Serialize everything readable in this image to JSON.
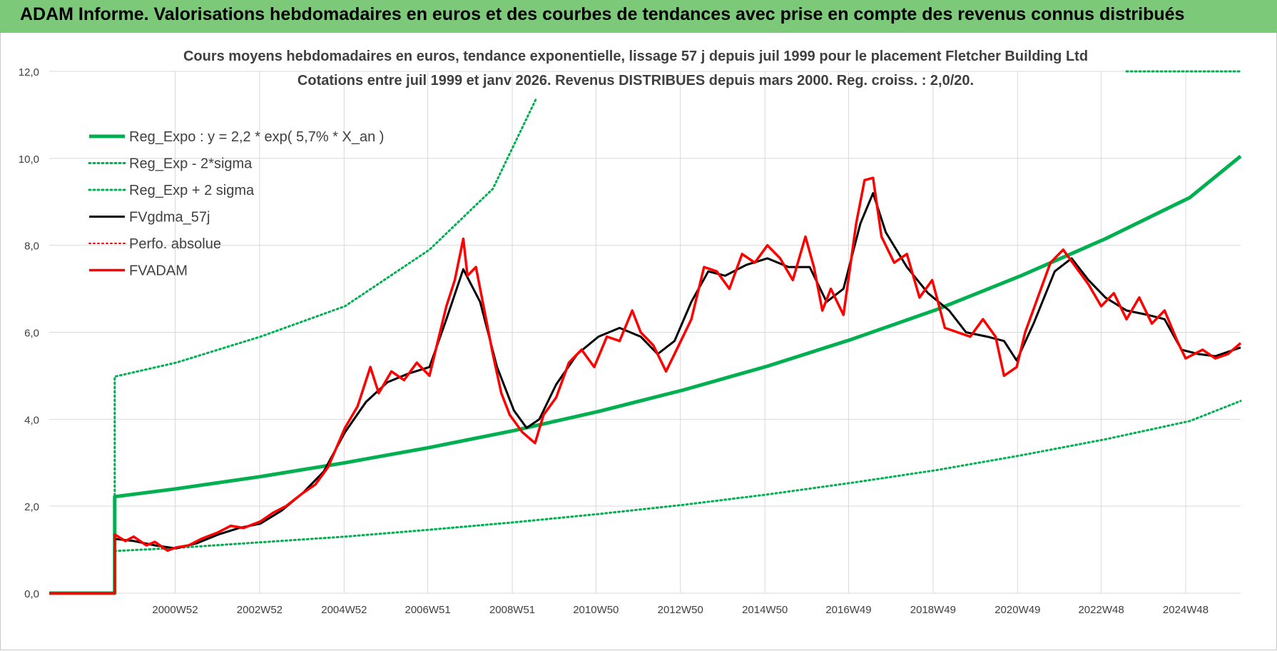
{
  "banner": {
    "title": "ADAM Informe. Valorisations hebdomadaires en euros et des courbes de tendances avec prise en compte des revenus connus distribués"
  },
  "chart_data": {
    "type": "line",
    "title": "Cours moyens hebdomadaires en euros, tendance exponentielle, lissage 57 j depuis juil 1999 pour le placement Fletcher Building Ltd",
    "subtitle": "Cotations entre juil 1999 et janv 2026. Revenus DISTRIBUES depuis mars 2000. Reg. croiss. : 2,0/20.",
    "xlabel": "",
    "ylabel": "",
    "ylim": [
      0,
      12
    ],
    "yticks": [
      "0,0",
      "2,0",
      "4,0",
      "6,0",
      "8,0",
      "10,0",
      "12,0"
    ],
    "xlim": [
      1998.0,
      2026.2
    ],
    "xticks": [
      {
        "x": 2000.98,
        "label": "2000W52"
      },
      {
        "x": 2002.98,
        "label": "2002W52"
      },
      {
        "x": 2004.98,
        "label": "2004W52"
      },
      {
        "x": 2006.96,
        "label": "2006W51"
      },
      {
        "x": 2008.96,
        "label": "2008W51"
      },
      {
        "x": 2010.94,
        "label": "2010W50"
      },
      {
        "x": 2012.94,
        "label": "2012W50"
      },
      {
        "x": 2014.94,
        "label": "2014W50"
      },
      {
        "x": 2016.92,
        "label": "2016W49"
      },
      {
        "x": 2018.92,
        "label": "2018W49"
      },
      {
        "x": 2020.92,
        "label": "2020W49"
      },
      {
        "x": 2022.9,
        "label": "2022W48"
      },
      {
        "x": 2024.9,
        "label": "2024W48"
      }
    ],
    "grid": true,
    "legend_position": "top-left",
    "series": [
      {
        "name": "Reg_Expo : y = 2,2 * exp( 5,7% *  X_an )",
        "color": "#00b050",
        "style": "solid",
        "width": 5,
        "points": [
          [
            1998.0,
            0
          ],
          [
            1999.55,
            0
          ],
          [
            1999.55,
            2.22
          ],
          [
            2001.0,
            2.4
          ],
          [
            2003.0,
            2.68
          ],
          [
            2005.0,
            3.0
          ],
          [
            2007.0,
            3.35
          ],
          [
            2009.0,
            3.74
          ],
          [
            2011.0,
            4.18
          ],
          [
            2013.0,
            4.67
          ],
          [
            2015.0,
            5.22
          ],
          [
            2017.0,
            5.84
          ],
          [
            2019.0,
            6.52
          ],
          [
            2021.0,
            7.3
          ],
          [
            2023.0,
            8.15
          ],
          [
            2025.0,
            9.1
          ],
          [
            2026.2,
            10.05
          ]
        ]
      },
      {
        "name": "Reg_Exp - 2*sigma",
        "color": "#00b050",
        "style": "dotted",
        "width": 3,
        "points": [
          [
            1999.55,
            0.97
          ],
          [
            2001.0,
            1.04
          ],
          [
            2003.0,
            1.17
          ],
          [
            2005.0,
            1.3
          ],
          [
            2007.0,
            1.46
          ],
          [
            2009.0,
            1.63
          ],
          [
            2011.0,
            1.82
          ],
          [
            2013.0,
            2.03
          ],
          [
            2015.0,
            2.27
          ],
          [
            2017.0,
            2.54
          ],
          [
            2019.0,
            2.83
          ],
          [
            2021.0,
            3.17
          ],
          [
            2023.0,
            3.54
          ],
          [
            2025.0,
            3.96
          ],
          [
            2026.2,
            4.42
          ]
        ]
      },
      {
        "name": "Reg_Exp + 2 sigma",
        "color": "#00b050",
        "style": "dotted",
        "width": 3,
        "points": [
          [
            1999.55,
            0.97
          ],
          [
            1999.55,
            4.98
          ],
          [
            2001.0,
            5.3
          ],
          [
            2003.0,
            5.9
          ],
          [
            2005.0,
            6.6
          ],
          [
            2007.0,
            7.9
          ],
          [
            2008.5,
            9.3
          ],
          [
            2009.54,
            11.4
          ]
        ]
      },
      {
        "name": "Reg_Exp + 2 sigma (suite)",
        "color": "#00b050",
        "style": "dotted",
        "width": 3,
        "points": [
          [
            2023.5,
            12.0
          ],
          [
            2026.2,
            12.0
          ]
        ]
      },
      {
        "name": "FVgdma_57j",
        "color": "#000000",
        "style": "solid",
        "width": 3,
        "points": [
          [
            1998.0,
            0
          ],
          [
            1999.55,
            0
          ],
          [
            1999.55,
            1.25
          ],
          [
            2000.0,
            1.2
          ],
          [
            2000.5,
            1.1
          ],
          [
            2001.0,
            1.03
          ],
          [
            2001.5,
            1.15
          ],
          [
            2002.0,
            1.35
          ],
          [
            2002.5,
            1.5
          ],
          [
            2003.0,
            1.6
          ],
          [
            2003.5,
            1.9
          ],
          [
            2004.0,
            2.3
          ],
          [
            2004.5,
            2.8
          ],
          [
            2005.0,
            3.7
          ],
          [
            2005.5,
            4.4
          ],
          [
            2006.0,
            4.85
          ],
          [
            2006.5,
            5.05
          ],
          [
            2007.0,
            5.2
          ],
          [
            2007.4,
            6.3
          ],
          [
            2007.8,
            7.45
          ],
          [
            2008.2,
            6.7
          ],
          [
            2008.6,
            5.2
          ],
          [
            2009.0,
            4.2
          ],
          [
            2009.3,
            3.8
          ],
          [
            2009.6,
            4.0
          ],
          [
            2010.0,
            4.8
          ],
          [
            2010.5,
            5.5
          ],
          [
            2011.0,
            5.9
          ],
          [
            2011.5,
            6.1
          ],
          [
            2012.0,
            5.9
          ],
          [
            2012.4,
            5.5
          ],
          [
            2012.8,
            5.8
          ],
          [
            2013.2,
            6.7
          ],
          [
            2013.6,
            7.4
          ],
          [
            2014.0,
            7.3
          ],
          [
            2014.5,
            7.55
          ],
          [
            2015.0,
            7.7
          ],
          [
            2015.5,
            7.5
          ],
          [
            2016.0,
            7.5
          ],
          [
            2016.4,
            6.7
          ],
          [
            2016.8,
            7.0
          ],
          [
            2017.2,
            8.5
          ],
          [
            2017.5,
            9.2
          ],
          [
            2017.8,
            8.3
          ],
          [
            2018.3,
            7.5
          ],
          [
            2018.8,
            6.9
          ],
          [
            2019.3,
            6.5
          ],
          [
            2019.7,
            6.0
          ],
          [
            2020.2,
            5.9
          ],
          [
            2020.6,
            5.8
          ],
          [
            2020.9,
            5.35
          ],
          [
            2021.3,
            6.2
          ],
          [
            2021.8,
            7.4
          ],
          [
            2022.2,
            7.7
          ],
          [
            2022.6,
            7.2
          ],
          [
            2023.0,
            6.8
          ],
          [
            2023.5,
            6.5
          ],
          [
            2024.0,
            6.4
          ],
          [
            2024.4,
            6.3
          ],
          [
            2024.8,
            5.6
          ],
          [
            2025.2,
            5.5
          ],
          [
            2025.6,
            5.45
          ],
          [
            2026.2,
            5.65
          ]
        ]
      },
      {
        "name": "Perfo. absolue",
        "color": "#ff0000",
        "style": "dotted",
        "width": 2,
        "points": []
      },
      {
        "name": "FVADAM",
        "color": "#ff0000",
        "style": "solid",
        "width": 3.5,
        "points": [
          [
            1998.0,
            0
          ],
          [
            1999.55,
            0
          ],
          [
            1999.55,
            1.35
          ],
          [
            1999.8,
            1.2
          ],
          [
            2000.0,
            1.3
          ],
          [
            2000.3,
            1.1
          ],
          [
            2000.5,
            1.18
          ],
          [
            2000.8,
            0.98
          ],
          [
            2001.0,
            1.05
          ],
          [
            2001.3,
            1.1
          ],
          [
            2001.6,
            1.25
          ],
          [
            2002.0,
            1.4
          ],
          [
            2002.3,
            1.55
          ],
          [
            2002.6,
            1.5
          ],
          [
            2003.0,
            1.65
          ],
          [
            2003.3,
            1.85
          ],
          [
            2003.6,
            2.0
          ],
          [
            2004.0,
            2.3
          ],
          [
            2004.3,
            2.5
          ],
          [
            2004.6,
            2.9
          ],
          [
            2005.0,
            3.8
          ],
          [
            2005.3,
            4.3
          ],
          [
            2005.6,
            5.2
          ],
          [
            2005.8,
            4.6
          ],
          [
            2006.1,
            5.1
          ],
          [
            2006.4,
            4.9
          ],
          [
            2006.7,
            5.3
          ],
          [
            2007.0,
            5.0
          ],
          [
            2007.2,
            5.8
          ],
          [
            2007.4,
            6.6
          ],
          [
            2007.6,
            7.2
          ],
          [
            2007.8,
            8.15
          ],
          [
            2007.9,
            7.3
          ],
          [
            2008.1,
            7.5
          ],
          [
            2008.3,
            6.5
          ],
          [
            2008.5,
            5.5
          ],
          [
            2008.7,
            4.6
          ],
          [
            2008.9,
            4.1
          ],
          [
            2009.2,
            3.7
          ],
          [
            2009.5,
            3.45
          ],
          [
            2009.7,
            4.1
          ],
          [
            2010.0,
            4.5
          ],
          [
            2010.3,
            5.3
          ],
          [
            2010.6,
            5.6
          ],
          [
            2010.9,
            5.2
          ],
          [
            2011.2,
            5.9
          ],
          [
            2011.5,
            5.8
          ],
          [
            2011.8,
            6.5
          ],
          [
            2012.0,
            6.0
          ],
          [
            2012.3,
            5.7
          ],
          [
            2012.6,
            5.1
          ],
          [
            2012.9,
            5.7
          ],
          [
            2013.2,
            6.3
          ],
          [
            2013.5,
            7.5
          ],
          [
            2013.8,
            7.4
          ],
          [
            2014.1,
            7.0
          ],
          [
            2014.4,
            7.8
          ],
          [
            2014.7,
            7.6
          ],
          [
            2015.0,
            8.0
          ],
          [
            2015.3,
            7.7
          ],
          [
            2015.6,
            7.2
          ],
          [
            2015.9,
            8.2
          ],
          [
            2016.1,
            7.5
          ],
          [
            2016.3,
            6.5
          ],
          [
            2016.5,
            7.0
          ],
          [
            2016.8,
            6.4
          ],
          [
            2017.1,
            8.5
          ],
          [
            2017.3,
            9.5
          ],
          [
            2017.5,
            9.55
          ],
          [
            2017.7,
            8.2
          ],
          [
            2018.0,
            7.6
          ],
          [
            2018.3,
            7.8
          ],
          [
            2018.6,
            6.8
          ],
          [
            2018.9,
            7.2
          ],
          [
            2019.2,
            6.1
          ],
          [
            2019.5,
            6.0
          ],
          [
            2019.8,
            5.9
          ],
          [
            2020.1,
            6.3
          ],
          [
            2020.4,
            5.9
          ],
          [
            2020.6,
            5.0
          ],
          [
            2020.9,
            5.2
          ],
          [
            2021.1,
            6.0
          ],
          [
            2021.4,
            6.8
          ],
          [
            2021.7,
            7.6
          ],
          [
            2022.0,
            7.9
          ],
          [
            2022.3,
            7.5
          ],
          [
            2022.6,
            7.1
          ],
          [
            2022.9,
            6.6
          ],
          [
            2023.2,
            6.9
          ],
          [
            2023.5,
            6.3
          ],
          [
            2023.8,
            6.8
          ],
          [
            2024.1,
            6.2
          ],
          [
            2024.4,
            6.5
          ],
          [
            2024.7,
            5.8
          ],
          [
            2024.9,
            5.4
          ],
          [
            2025.3,
            5.6
          ],
          [
            2025.6,
            5.4
          ],
          [
            2025.9,
            5.5
          ],
          [
            2026.2,
            5.75
          ]
        ]
      }
    ],
    "legend": [
      {
        "label": "Reg_Expo : y = 2,2 * exp( 5,7% *  X_an )",
        "color": "#00b050",
        "style": "solid",
        "width": 5
      },
      {
        "label": "Reg_Exp - 2*sigma",
        "color": "#00b050",
        "style": "dotted",
        "width": 3
      },
      {
        "label": "Reg_Exp + 2 sigma",
        "color": "#00b050",
        "style": "dotted",
        "width": 3
      },
      {
        "label": "FVgdma_57j",
        "color": "#000000",
        "style": "solid",
        "width": 3
      },
      {
        "label": "Perfo. absolue",
        "color": "#ff0000",
        "style": "dotted",
        "width": 2
      },
      {
        "label": "FVADAM",
        "color": "#ff0000",
        "style": "solid",
        "width": 3.5
      }
    ]
  }
}
